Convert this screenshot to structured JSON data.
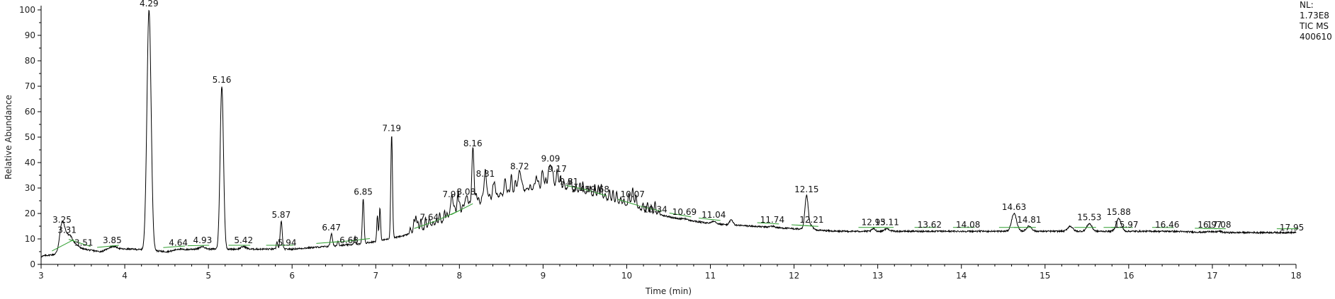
{
  "chart_data": {
    "type": "line",
    "title": "",
    "xlabel": "Time (min)",
    "ylabel": "Relative Abundance",
    "xlim": [
      3,
      18
    ],
    "ylim": [
      0,
      100
    ],
    "x_ticks": [
      3,
      4,
      5,
      6,
      7,
      8,
      9,
      10,
      11,
      12,
      13,
      14,
      15,
      16,
      17,
      18
    ],
    "y_ticks": [
      0,
      10,
      20,
      30,
      40,
      50,
      60,
      70,
      80,
      90,
      100
    ],
    "info": [
      "NL:",
      "1.73E8",
      "TIC  MS",
      "400610"
    ],
    "colors": {
      "trace": "#000000",
      "integration": "#2e9e2e",
      "axis": "#000000"
    },
    "baseline_points": [
      [
        3.0,
        3
      ],
      [
        3.05,
        3.5
      ],
      [
        3.2,
        4
      ],
      [
        3.35,
        9
      ],
      [
        3.5,
        6
      ],
      [
        3.7,
        5
      ],
      [
        3.9,
        6
      ],
      [
        4.1,
        6
      ],
      [
        4.5,
        5
      ],
      [
        4.8,
        6
      ],
      [
        5.0,
        6
      ],
      [
        5.3,
        6
      ],
      [
        5.6,
        6
      ],
      [
        6.0,
        6
      ],
      [
        6.4,
        7
      ],
      [
        6.8,
        8
      ],
      [
        7.0,
        9
      ],
      [
        7.3,
        11
      ],
      [
        7.6,
        14
      ],
      [
        7.9,
        18
      ],
      [
        8.2,
        23
      ],
      [
        8.5,
        27
      ],
      [
        8.8,
        29
      ],
      [
        9.0,
        30
      ],
      [
        9.2,
        30
      ],
      [
        9.5,
        28
      ],
      [
        9.8,
        25
      ],
      [
        10.2,
        21
      ],
      [
        10.6,
        18
      ],
      [
        11.0,
        16
      ],
      [
        11.5,
        15
      ],
      [
        12.0,
        14
      ],
      [
        12.5,
        13
      ],
      [
        13.0,
        13
      ],
      [
        13.5,
        13
      ],
      [
        14.0,
        13
      ],
      [
        14.5,
        13
      ],
      [
        15.0,
        13
      ],
      [
        15.5,
        13
      ],
      [
        16.0,
        13
      ],
      [
        16.5,
        13
      ],
      [
        17.0,
        12.5
      ],
      [
        17.5,
        12.5
      ],
      [
        18.0,
        12.5
      ]
    ],
    "peaks": [
      {
        "rt": 3.25,
        "height": 15,
        "label": "3.25",
        "width": 0.03
      },
      {
        "rt": 3.31,
        "height": 11,
        "label": "3.31",
        "width": 0.05
      },
      {
        "rt": 3.51,
        "height": 6,
        "label": "3.51",
        "width": 0.05
      },
      {
        "rt": 3.85,
        "height": 7,
        "label": "3.85",
        "width": 0.05
      },
      {
        "rt": 4.29,
        "height": 100,
        "label": "4.29",
        "width": 0.025
      },
      {
        "rt": 4.64,
        "height": 6,
        "label": "4.64",
        "width": 0.04
      },
      {
        "rt": 4.93,
        "height": 7,
        "label": "4.93",
        "width": 0.03
      },
      {
        "rt": 5.16,
        "height": 70,
        "label": "5.16",
        "width": 0.02
      },
      {
        "rt": 5.42,
        "height": 7,
        "label": "5.42",
        "width": 0.03
      },
      {
        "rt": 5.87,
        "height": 17,
        "label": "5.87",
        "width": 0.012
      },
      {
        "rt": 5.94,
        "height": 6,
        "label": "5.94",
        "width": 0.02
      },
      {
        "rt": 6.47,
        "height": 12,
        "label": "6.47",
        "width": 0.012
      },
      {
        "rt": 6.68,
        "height": 7,
        "label": "6.68",
        "width": 0.02
      },
      {
        "rt": 6.85,
        "height": 26,
        "label": "6.85",
        "width": 0.01
      },
      {
        "rt": 7.19,
        "height": 51,
        "label": "7.19",
        "width": 0.01
      },
      {
        "rt": 7.64,
        "height": 16,
        "label": "7.64",
        "width": 0.015
      },
      {
        "rt": 7.91,
        "height": 25,
        "label": "7.91",
        "width": 0.02
      },
      {
        "rt": 8.08,
        "height": 26,
        "label": "8.08",
        "width": 0.02
      },
      {
        "rt": 8.16,
        "height": 45,
        "label": "8.16",
        "width": 0.012
      },
      {
        "rt": 8.31,
        "height": 33,
        "label": "8.31",
        "width": 0.02
      },
      {
        "rt": 8.72,
        "height": 36,
        "label": "8.72",
        "width": 0.02
      },
      {
        "rt": 9.09,
        "height": 39,
        "label": "9.09",
        "width": 0.02
      },
      {
        "rt": 9.17,
        "height": 35,
        "label": "9.17",
        "width": 0.015
      },
      {
        "rt": 9.31,
        "height": 30,
        "label": "9.31",
        "width": 0.02
      },
      {
        "rt": 9.45,
        "height": 27,
        "label": "9.45",
        "width": 0.03
      },
      {
        "rt": 9.68,
        "height": 27,
        "label": "9.68",
        "width": 0.03
      },
      {
        "rt": 10.07,
        "height": 25,
        "label": "10.07",
        "width": 0.03
      },
      {
        "rt": 10.34,
        "height": 19,
        "label": "10.34",
        "width": 0.03
      },
      {
        "rt": 10.69,
        "height": 18,
        "label": "10.69",
        "width": 0.03
      },
      {
        "rt": 11.04,
        "height": 17,
        "label": "11.04",
        "width": 0.03
      },
      {
        "rt": 11.74,
        "height": 15,
        "label": "11.74",
        "width": 0.03
      },
      {
        "rt": 12.15,
        "height": 27,
        "label": "12.15",
        "width": 0.02
      },
      {
        "rt": 12.21,
        "height": 15,
        "label": "12.21",
        "width": 0.02
      },
      {
        "rt": 12.95,
        "height": 14,
        "label": "12.95",
        "width": 0.02
      },
      {
        "rt": 13.11,
        "height": 14,
        "label": "13.11",
        "width": 0.03
      },
      {
        "rt": 13.62,
        "height": 13,
        "label": "13.62",
        "width": 0.03
      },
      {
        "rt": 14.08,
        "height": 13,
        "label": "14.08",
        "width": 0.03
      },
      {
        "rt": 14.63,
        "height": 20,
        "label": "14.63",
        "width": 0.03
      },
      {
        "rt": 14.81,
        "height": 15,
        "label": "14.81",
        "width": 0.03
      },
      {
        "rt": 15.53,
        "height": 16,
        "label": "15.53",
        "width": 0.03
      },
      {
        "rt": 15.88,
        "height": 18,
        "label": "15.88",
        "width": 0.03
      },
      {
        "rt": 15.97,
        "height": 13,
        "label": "15.97",
        "width": 0.03
      },
      {
        "rt": 16.46,
        "height": 13,
        "label": "16.46",
        "width": 0.03
      },
      {
        "rt": 16.97,
        "height": 13,
        "label": "16.97",
        "width": 0.03
      },
      {
        "rt": 17.08,
        "height": 13,
        "label": "17.08",
        "width": 0.03
      },
      {
        "rt": 17.95,
        "height": 12,
        "label": "17.95",
        "width": 0.03
      }
    ]
  }
}
